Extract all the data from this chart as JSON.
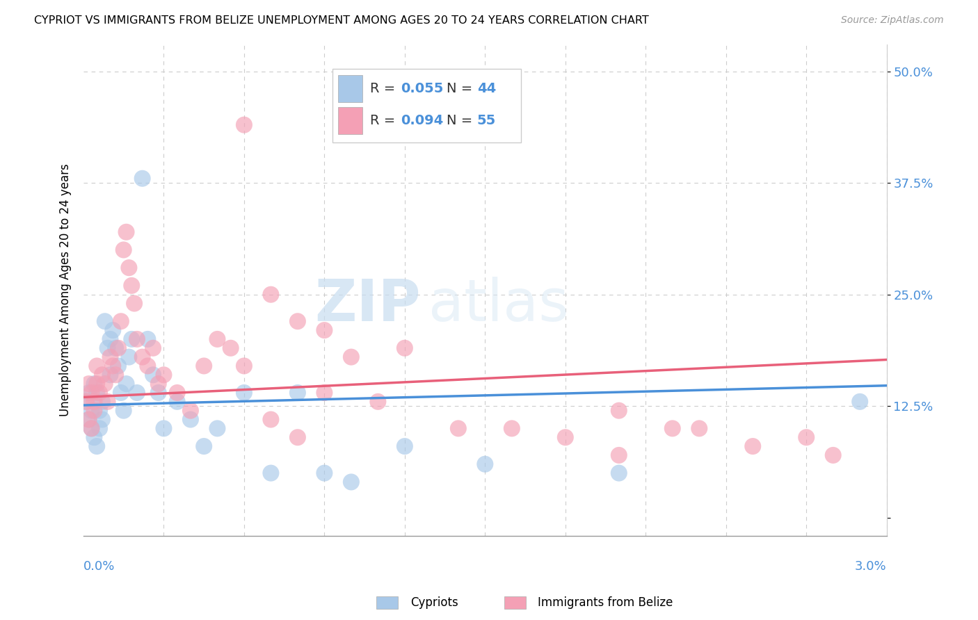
{
  "title": "CYPRIOT VS IMMIGRANTS FROM BELIZE UNEMPLOYMENT AMONG AGES 20 TO 24 YEARS CORRELATION CHART",
  "source": "Source: ZipAtlas.com",
  "ylabel": "Unemployment Among Ages 20 to 24 years",
  "yticks": [
    0.0,
    0.125,
    0.25,
    0.375,
    0.5
  ],
  "ytick_labels": [
    "",
    "12.5%",
    "25.0%",
    "37.5%",
    "50.0%"
  ],
  "xmin": 0.0,
  "xmax": 0.03,
  "ymin": -0.02,
  "ymax": 0.53,
  "legend_r1": "R = 0.055",
  "legend_n1": "N = 44",
  "legend_r2": "R = 0.094",
  "legend_n2": "N = 55",
  "color_blue": "#a8c8e8",
  "color_pink": "#f4a0b5",
  "color_blue_text": "#4a90d9",
  "color_pink_text": "#e8607a",
  "watermark_zip": "ZIP",
  "watermark_atlas": "atlas",
  "cypriot_x": [
    0.0001,
    0.0002,
    0.0002,
    0.0003,
    0.0003,
    0.0004,
    0.0004,
    0.0005,
    0.0005,
    0.0006,
    0.0006,
    0.0007,
    0.0007,
    0.0008,
    0.0009,
    0.001,
    0.001,
    0.0011,
    0.0012,
    0.0013,
    0.0014,
    0.0015,
    0.0016,
    0.0017,
    0.0018,
    0.002,
    0.0022,
    0.0024,
    0.0026,
    0.0028,
    0.003,
    0.0035,
    0.004,
    0.0045,
    0.005,
    0.006,
    0.007,
    0.008,
    0.009,
    0.01,
    0.012,
    0.015,
    0.02,
    0.029
  ],
  "cypriot_y": [
    0.13,
    0.11,
    0.14,
    0.1,
    0.12,
    0.09,
    0.15,
    0.08,
    0.14,
    0.1,
    0.12,
    0.11,
    0.13,
    0.22,
    0.19,
    0.2,
    0.16,
    0.21,
    0.19,
    0.17,
    0.14,
    0.12,
    0.15,
    0.18,
    0.2,
    0.14,
    0.38,
    0.2,
    0.16,
    0.14,
    0.1,
    0.13,
    0.11,
    0.08,
    0.1,
    0.14,
    0.05,
    0.14,
    0.05,
    0.04,
    0.08,
    0.06,
    0.05,
    0.13
  ],
  "belize_x": [
    0.0001,
    0.0002,
    0.0002,
    0.0003,
    0.0003,
    0.0004,
    0.0004,
    0.0005,
    0.0005,
    0.0006,
    0.0007,
    0.0008,
    0.0009,
    0.001,
    0.0011,
    0.0012,
    0.0013,
    0.0014,
    0.0015,
    0.0016,
    0.0017,
    0.0018,
    0.0019,
    0.002,
    0.0022,
    0.0024,
    0.0026,
    0.0028,
    0.003,
    0.0035,
    0.004,
    0.0045,
    0.005,
    0.0055,
    0.006,
    0.007,
    0.008,
    0.009,
    0.01,
    0.012,
    0.014,
    0.016,
    0.018,
    0.02,
    0.022,
    0.025,
    0.028,
    0.006,
    0.007,
    0.008,
    0.009,
    0.011,
    0.02,
    0.023,
    0.027
  ],
  "belize_y": [
    0.13,
    0.11,
    0.15,
    0.1,
    0.14,
    0.12,
    0.13,
    0.15,
    0.17,
    0.14,
    0.16,
    0.15,
    0.13,
    0.18,
    0.17,
    0.16,
    0.19,
    0.22,
    0.3,
    0.32,
    0.28,
    0.26,
    0.24,
    0.2,
    0.18,
    0.17,
    0.19,
    0.15,
    0.16,
    0.14,
    0.12,
    0.17,
    0.2,
    0.19,
    0.17,
    0.11,
    0.09,
    0.21,
    0.18,
    0.19,
    0.1,
    0.1,
    0.09,
    0.07,
    0.1,
    0.08,
    0.07,
    0.44,
    0.25,
    0.22,
    0.14,
    0.13,
    0.12,
    0.1,
    0.09
  ]
}
